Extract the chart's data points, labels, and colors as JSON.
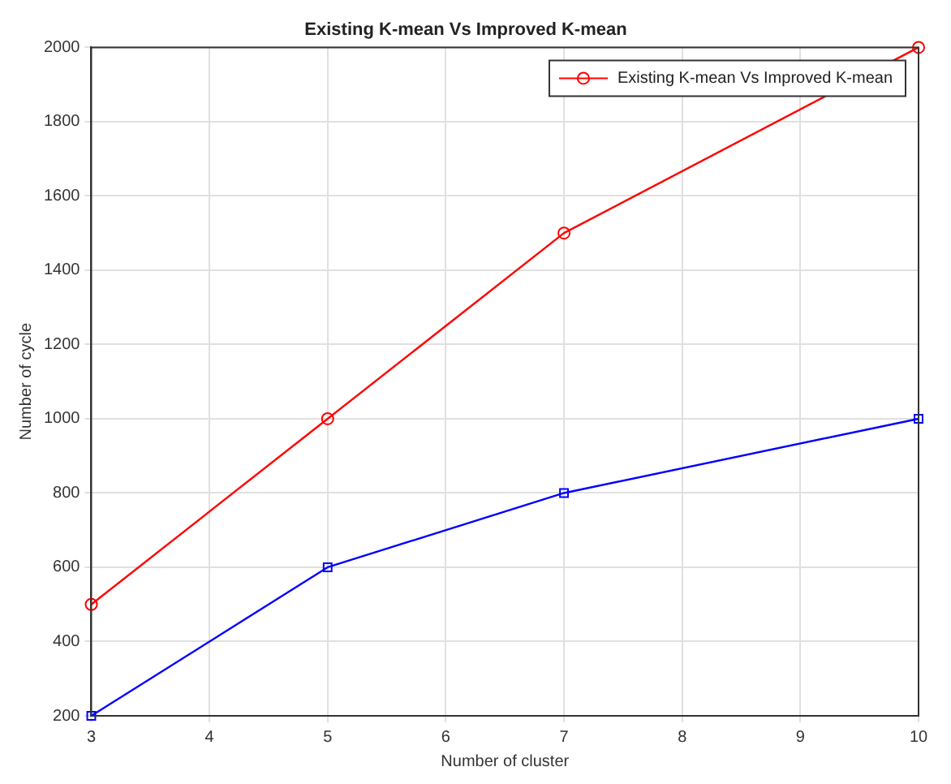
{
  "chart_data": {
    "type": "line",
    "title": "Existing K-mean Vs Improved K-mean",
    "xlabel": "Number of cluster",
    "ylabel": "Number of cycle",
    "x": [
      3,
      5,
      7,
      10
    ],
    "series": [
      {
        "name": "Existing K-mean Vs Improved K-mean",
        "color": "#ff0000",
        "marker": "circle",
        "values": [
          500,
          1000,
          1500,
          2000
        ]
      },
      {
        "color": "#0000ff",
        "marker": "square",
        "values": [
          200,
          600,
          800,
          1000
        ]
      }
    ],
    "xlim": [
      3,
      10
    ],
    "xticks": [
      3,
      4,
      5,
      6,
      7,
      8,
      9,
      10
    ],
    "ylim": [
      200,
      2000
    ],
    "yticks": [
      200,
      400,
      600,
      800,
      1000,
      1200,
      1400,
      1600,
      1800,
      2000
    ],
    "grid": true,
    "legend": "top right",
    "line_style": "solid"
  }
}
